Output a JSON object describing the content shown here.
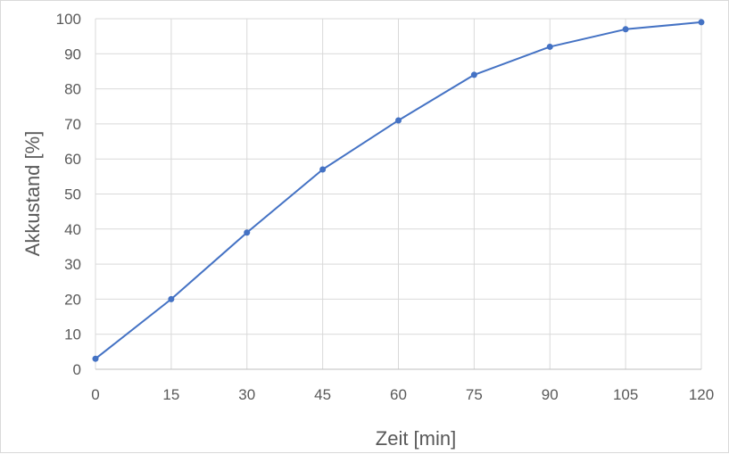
{
  "chart_data": {
    "type": "line",
    "title": "",
    "xlabel": "Zeit [min]",
    "ylabel": "Akkustand [%]",
    "x": [
      0,
      15,
      30,
      45,
      60,
      75,
      90,
      105,
      120
    ],
    "x_ticks": [
      "0",
      "15",
      "30",
      "45",
      "60",
      "75",
      "90",
      "105",
      "120"
    ],
    "y_ticks": [
      "0",
      "10",
      "20",
      "30",
      "40",
      "50",
      "60",
      "70",
      "80",
      "90",
      "100"
    ],
    "xlim": [
      0,
      120
    ],
    "ylim": [
      0,
      100
    ],
    "grid": true,
    "legend": "none",
    "series": [
      {
        "values": [
          3,
          20,
          39,
          57,
          71,
          84,
          92,
          97,
          99
        ],
        "color": "#4472c4"
      }
    ]
  }
}
